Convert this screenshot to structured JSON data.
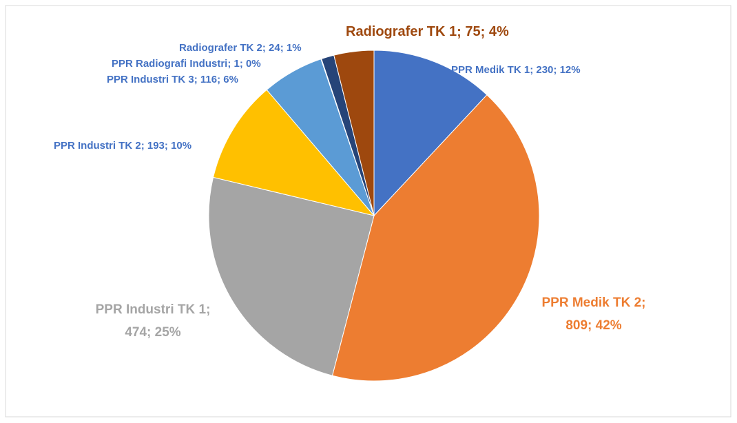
{
  "chart_data": {
    "type": "pie",
    "categories": [
      "PPR Medik TK 1",
      "PPR Medik TK 2",
      "PPR Industri TK 1",
      "PPR Industri TK 2",
      "PPR Industri TK 3",
      "PPR Radiografi Industri",
      "Radiografer TK 2",
      "Radiografer TK 1"
    ],
    "values": [
      230,
      809,
      474,
      193,
      116,
      1,
      24,
      75
    ],
    "percent_labels": [
      "12%",
      "42%",
      "25%",
      "10%",
      "6%",
      "0%",
      "1%",
      "4%"
    ],
    "colors": [
      "#4472c4",
      "#ed7d31",
      "#a5a5a5",
      "#ffc000",
      "#5b9bd5",
      "#70ad47",
      "#264478",
      "#9e480e"
    ],
    "label_colors": [
      "#4472c4",
      "#ed7d31",
      "#a5a5a5",
      "#4472c4",
      "#4472c4",
      "#4472c4",
      "#4472c4",
      "#9e480e"
    ]
  }
}
